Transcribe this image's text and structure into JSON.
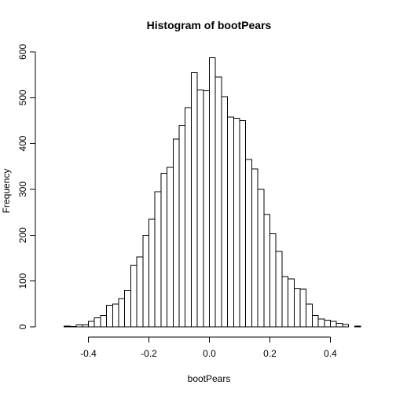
{
  "chart_data": {
    "type": "bar",
    "title": "Histogram of bootPears",
    "xlabel": "bootPears",
    "ylabel": "Frequency",
    "bin_width": 0.02,
    "bin_start": -0.5,
    "values": [
      0,
      2,
      1,
      4,
      4,
      12,
      20,
      25,
      47,
      50,
      62,
      80,
      135,
      153,
      200,
      235,
      295,
      335,
      348,
      410,
      440,
      478,
      555,
      517,
      515,
      587,
      545,
      502,
      458,
      455,
      450,
      365,
      345,
      300,
      245,
      203,
      165,
      110,
      105,
      83,
      82,
      50,
      25,
      17,
      15,
      12,
      8,
      5,
      0,
      2
    ],
    "xlim": [
      -0.5,
      0.5
    ],
    "ylim": [
      0,
      600
    ],
    "x_ticks": [
      -0.4,
      -0.2,
      0.0,
      0.2,
      0.4
    ],
    "x_tick_labels": [
      "-0.4",
      "-0.2",
      "0.0",
      "0.2",
      "0.4"
    ],
    "y_ticks": [
      0,
      100,
      200,
      300,
      400,
      500,
      600
    ],
    "y_tick_labels": [
      "0",
      "100",
      "200",
      "300",
      "400",
      "500",
      "600"
    ],
    "grid": false
  }
}
